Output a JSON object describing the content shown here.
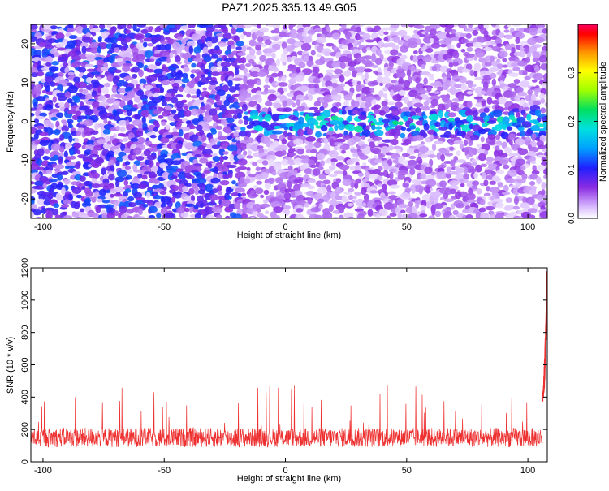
{
  "chart_data": [
    {
      "type": "heatmap",
      "title": "PAZ1.2025.335.13.49.G05",
      "xlabel": "Height of straight line (km)",
      "ylabel": "Frequency (Hz)",
      "xlim": [
        -105,
        108
      ],
      "ylim": [
        -25,
        25
      ],
      "x_ticks": [
        -100,
        -50,
        0,
        50,
        100
      ],
      "y_ticks": [
        -20,
        -10,
        0,
        10,
        20
      ],
      "colorbar": {
        "label": "Normalized spectral amplitude",
        "range": [
          0,
          0.4
        ],
        "ticks": [
          0.0,
          0.1,
          0.2,
          0.3
        ],
        "colormap": "rainbow-white"
      },
      "signal_band": {
        "x_start": -20,
        "x_end": 108,
        "freq_center": 0,
        "freq_halfwidth": 3,
        "amplitude": 0.18
      },
      "background_amplitude": {
        "x_left_of": -20,
        "left": 0.07,
        "right": 0.035
      }
    },
    {
      "type": "line",
      "xlabel": "Height of straight line (km)",
      "ylabel": "SNR (10 * v/v)",
      "xlim": [
        -105,
        108
      ],
      "ylim": [
        0,
        1200
      ],
      "x_ticks": [
        -100,
        -50,
        0,
        50,
        100
      ],
      "y_ticks": [
        0,
        200,
        400,
        600,
        800,
        1000,
        1200
      ],
      "series": [
        {
          "color": "#ee3030",
          "baseline": 150,
          "noise_spread": 60,
          "spike_max": 480,
          "end_rise": {
            "x_start": 106,
            "x_end": 108,
            "y_start": 400,
            "y_end": 1180
          }
        }
      ]
    }
  ]
}
